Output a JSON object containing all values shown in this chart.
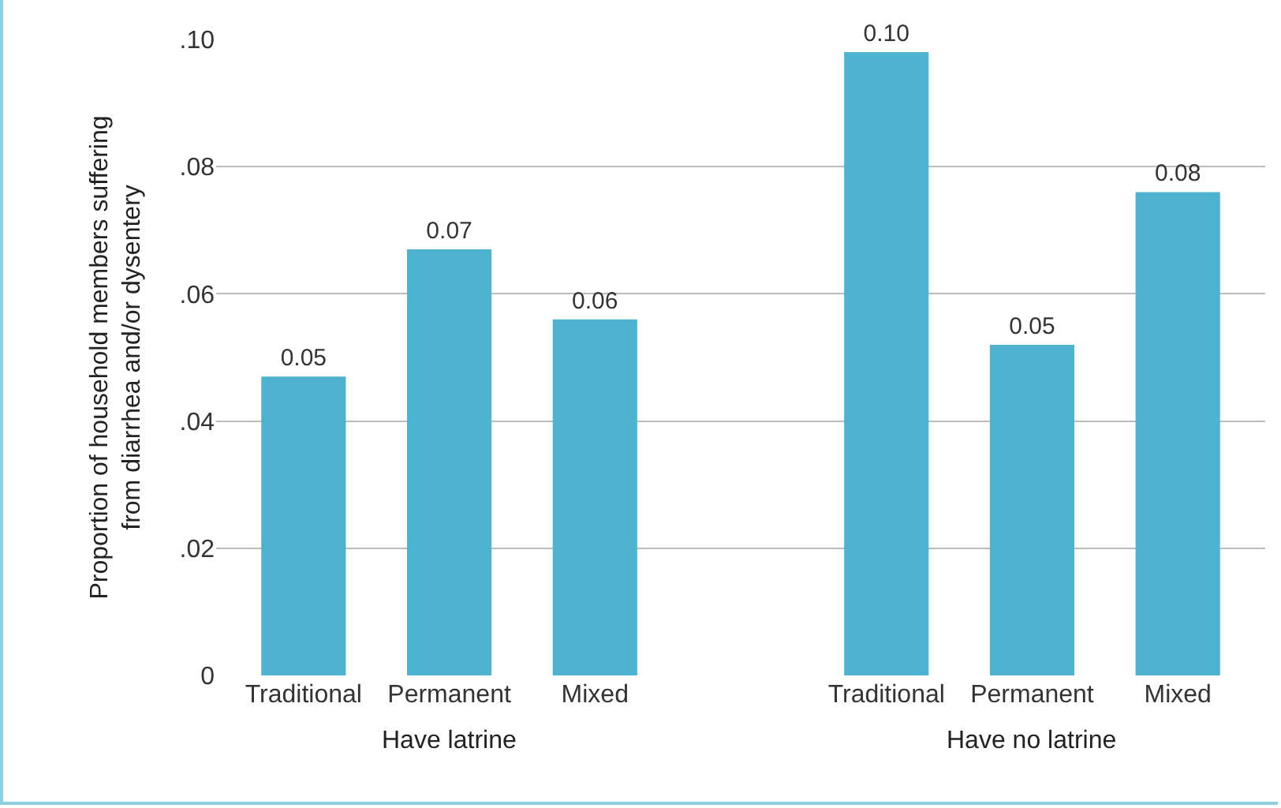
{
  "chart_data": {
    "type": "bar",
    "ylabel": "Proportion of household members suffering from diarrhea and/or dysentery",
    "categories": [
      "Traditional",
      "Permanent",
      "Mixed",
      null,
      "Traditional",
      "Permanent",
      "Mixed"
    ],
    "values": [
      0.047,
      0.067,
      0.056,
      null,
      0.098,
      0.052,
      0.076
    ],
    "value_labels": [
      "0.05",
      "0.07",
      "0.06",
      null,
      "0.10",
      "0.05",
      "0.08"
    ],
    "color": "#4db3d1",
    "ylim": [
      0,
      0.1
    ],
    "yticks": [
      0,
      {
        "value": 0.02,
        "label": ".02"
      },
      {
        "value": 0.04,
        "label": ".04"
      },
      {
        "value": 0.06,
        "label": ".06"
      },
      {
        "value": 0.08,
        "label": ".08"
      },
      {
        "value": 0.1,
        "label": ".10"
      }
    ],
    "grid": "y",
    "annotations": [
      "Have latrine",
      "Have no latrine"
    ]
  }
}
